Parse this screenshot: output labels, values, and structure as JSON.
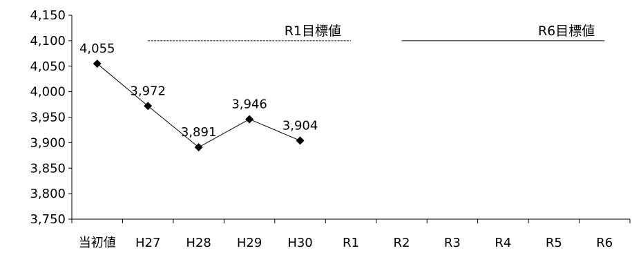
{
  "chart_data": {
    "type": "line",
    "categories": [
      "当初値",
      "H27",
      "H28",
      "H29",
      "H30",
      "R1",
      "R2",
      "R3",
      "R4",
      "R5",
      "R6"
    ],
    "series": [
      {
        "values": [
          4055,
          3972,
          3891,
          3946,
          3904,
          null,
          null,
          null,
          null,
          null,
          null
        ],
        "color": "#000000"
      }
    ],
    "data_labels": [
      "4,055",
      "3,972",
      "3,891",
      "3,946",
      "3,904"
    ],
    "yticks": [
      "3,750",
      "3,800",
      "3,850",
      "3,900",
      "3,950",
      "4,000",
      "4,050",
      "4,100",
      "4,150"
    ],
    "ylim": [
      3750,
      4150
    ],
    "grid": false,
    "targets": [
      {
        "label": "R1目標値",
        "value": 4100,
        "from": "H27",
        "to": "R1",
        "style": "dashed"
      },
      {
        "label": "R6目標値",
        "value": 4100,
        "from": "R2",
        "to": "R6",
        "style": "solid"
      }
    ]
  }
}
